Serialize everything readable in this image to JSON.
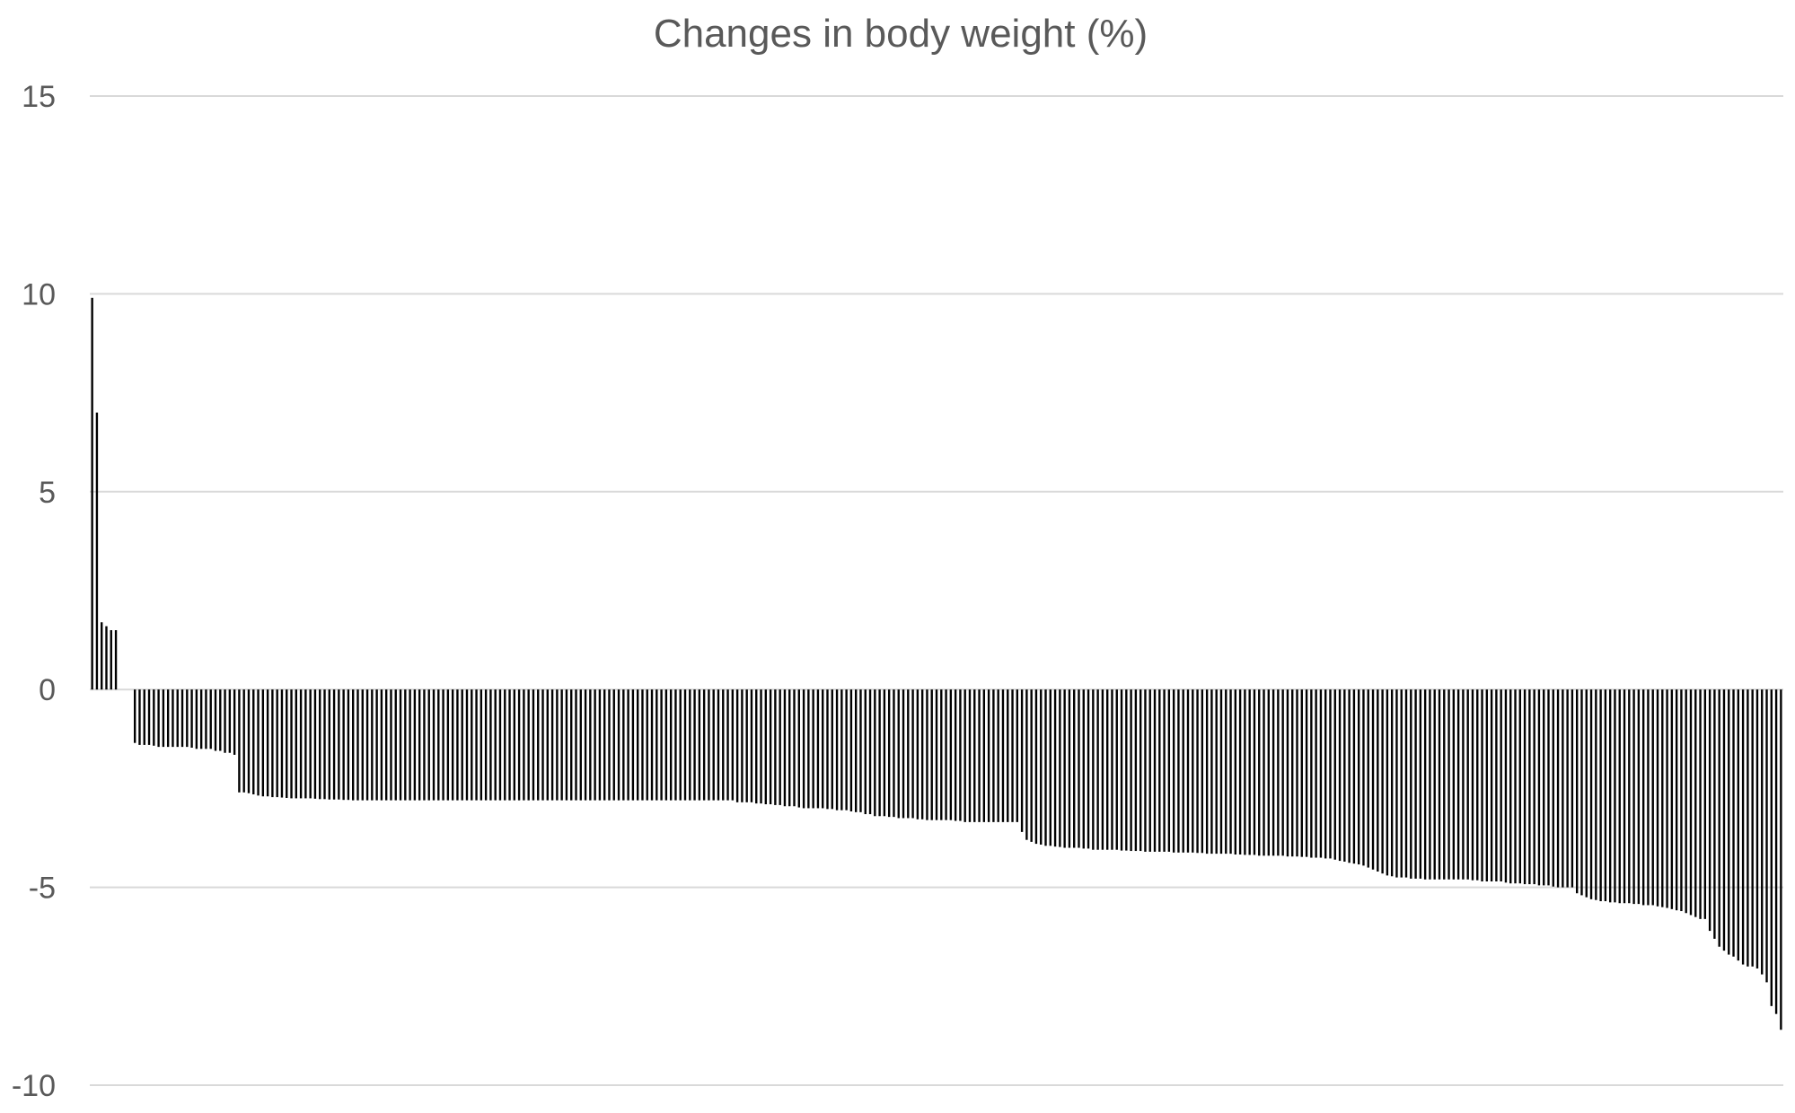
{
  "chart_data": {
    "type": "bar",
    "title": "Changes in body weight (%)",
    "xlabel": "",
    "ylabel": "",
    "ylim": [
      -10,
      15
    ],
    "yticks": [
      15,
      10,
      5,
      0,
      -5,
      -10
    ],
    "grid": true,
    "legend": "none",
    "bar_color": "#000000",
    "series": [
      {
        "values": [
          9.9,
          7.0,
          1.7,
          1.6,
          1.5,
          1.5,
          0,
          0,
          0,
          -1.35,
          -1.4,
          -1.4,
          -1.4,
          -1.42,
          -1.45,
          -1.45,
          -1.45,
          -1.45,
          -1.45,
          -1.45,
          -1.45,
          -1.47,
          -1.5,
          -1.5,
          -1.5,
          -1.5,
          -1.55,
          -1.55,
          -1.6,
          -1.6,
          -1.65,
          -2.6,
          -2.6,
          -2.62,
          -2.65,
          -2.68,
          -2.7,
          -2.7,
          -2.72,
          -2.72,
          -2.73,
          -2.74,
          -2.75,
          -2.75,
          -2.75,
          -2.75,
          -2.75,
          -2.76,
          -2.77,
          -2.77,
          -2.78,
          -2.78,
          -2.78,
          -2.79,
          -2.79,
          -2.8,
          -2.8,
          -2.8,
          -2.8,
          -2.8,
          -2.8,
          -2.8,
          -2.8,
          -2.8,
          -2.8,
          -2.8,
          -2.8,
          -2.8,
          -2.8,
          -2.8,
          -2.8,
          -2.8,
          -2.8,
          -2.8,
          -2.8,
          -2.8,
          -2.8,
          -2.8,
          -2.8,
          -2.8,
          -2.8,
          -2.8,
          -2.8,
          -2.8,
          -2.8,
          -2.8,
          -2.8,
          -2.8,
          -2.8,
          -2.8,
          -2.8,
          -2.8,
          -2.8,
          -2.8,
          -2.8,
          -2.8,
          -2.8,
          -2.8,
          -2.8,
          -2.8,
          -2.8,
          -2.8,
          -2.8,
          -2.8,
          -2.8,
          -2.8,
          -2.8,
          -2.8,
          -2.8,
          -2.8,
          -2.8,
          -2.8,
          -2.8,
          -2.8,
          -2.8,
          -2.8,
          -2.8,
          -2.8,
          -2.8,
          -2.8,
          -2.8,
          -2.8,
          -2.8,
          -2.8,
          -2.8,
          -2.8,
          -2.8,
          -2.8,
          -2.8,
          -2.8,
          -2.8,
          -2.8,
          -2.8,
          -2.8,
          -2.8,
          -2.8,
          -2.85,
          -2.85,
          -2.85,
          -2.85,
          -2.88,
          -2.88,
          -2.9,
          -2.9,
          -2.92,
          -2.92,
          -2.95,
          -2.95,
          -2.95,
          -2.98,
          -3.0,
          -3.0,
          -3.0,
          -3.0,
          -3.0,
          -3.02,
          -3.02,
          -3.05,
          -3.05,
          -3.05,
          -3.08,
          -3.1,
          -3.1,
          -3.15,
          -3.15,
          -3.2,
          -3.2,
          -3.2,
          -3.22,
          -3.22,
          -3.25,
          -3.25,
          -3.25,
          -3.25,
          -3.28,
          -3.28,
          -3.3,
          -3.3,
          -3.3,
          -3.3,
          -3.3,
          -3.3,
          -3.32,
          -3.32,
          -3.35,
          -3.35,
          -3.35,
          -3.35,
          -3.35,
          -3.35,
          -3.35,
          -3.35,
          -3.35,
          -3.35,
          -3.35,
          -3.35,
          -3.6,
          -3.8,
          -3.85,
          -3.9,
          -3.92,
          -3.95,
          -3.95,
          -3.97,
          -3.98,
          -4.0,
          -4.0,
          -4.0,
          -4.0,
          -4.02,
          -4.02,
          -4.05,
          -4.05,
          -4.05,
          -4.05,
          -4.05,
          -4.05,
          -4.07,
          -4.07,
          -4.08,
          -4.08,
          -4.08,
          -4.1,
          -4.1,
          -4.1,
          -4.1,
          -4.1,
          -4.1,
          -4.12,
          -4.12,
          -4.12,
          -4.12,
          -4.12,
          -4.13,
          -4.13,
          -4.15,
          -4.15,
          -4.15,
          -4.15,
          -4.15,
          -4.15,
          -4.17,
          -4.17,
          -4.18,
          -4.18,
          -4.18,
          -4.2,
          -4.2,
          -4.2,
          -4.2,
          -4.2,
          -4.2,
          -4.22,
          -4.22,
          -4.22,
          -4.23,
          -4.23,
          -4.25,
          -4.25,
          -4.25,
          -4.27,
          -4.27,
          -4.3,
          -4.33,
          -4.35,
          -4.38,
          -4.4,
          -4.42,
          -4.45,
          -4.5,
          -4.55,
          -4.6,
          -4.65,
          -4.7,
          -4.72,
          -4.75,
          -4.75,
          -4.75,
          -4.78,
          -4.78,
          -4.78,
          -4.8,
          -4.8,
          -4.8,
          -4.8,
          -4.8,
          -4.8,
          -4.8,
          -4.8,
          -4.8,
          -4.8,
          -4.82,
          -4.82,
          -4.85,
          -4.85,
          -4.85,
          -4.85,
          -4.85,
          -4.88,
          -4.9,
          -4.9,
          -4.9,
          -4.92,
          -4.92,
          -4.92,
          -4.95,
          -4.95,
          -4.95,
          -4.98,
          -5.0,
          -5.0,
          -5.0,
          -5.0,
          -5.15,
          -5.2,
          -5.25,
          -5.3,
          -5.32,
          -5.35,
          -5.35,
          -5.38,
          -5.38,
          -5.4,
          -5.4,
          -5.4,
          -5.42,
          -5.42,
          -5.45,
          -5.45,
          -5.45,
          -5.48,
          -5.5,
          -5.52,
          -5.55,
          -5.58,
          -5.6,
          -5.65,
          -5.7,
          -5.75,
          -5.8,
          -5.8,
          -6.1,
          -6.3,
          -6.5,
          -6.6,
          -6.7,
          -6.75,
          -6.85,
          -6.95,
          -7.0,
          -7.0,
          -7.05,
          -7.2,
          -7.4,
          -8.0,
          -8.2,
          -8.6
        ]
      }
    ]
  }
}
